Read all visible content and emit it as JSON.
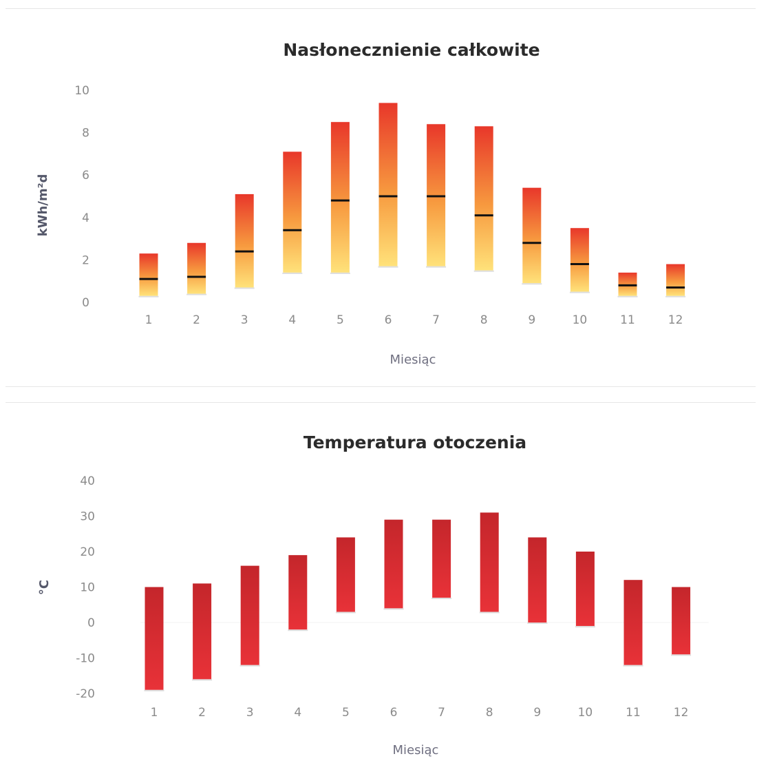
{
  "chart_data": [
    {
      "type": "bar",
      "subtype": "floating-range-with-mean",
      "title": "Nasłonecznienie całkowite",
      "xlabel": "Miesiąc",
      "ylabel": "kWh/m²d",
      "categories": [
        "1",
        "2",
        "3",
        "4",
        "5",
        "6",
        "7",
        "8",
        "9",
        "10",
        "11",
        "12"
      ],
      "ylim": [
        0,
        10
      ],
      "yticks": [
        0,
        2,
        4,
        6,
        8,
        10
      ],
      "series": [
        {
          "role": "max",
          "values": [
            2.3,
            2.8,
            5.1,
            7.1,
            8.5,
            9.4,
            8.4,
            8.3,
            5.4,
            3.5,
            1.4,
            1.8
          ]
        },
        {
          "role": "mean",
          "values": [
            1.1,
            1.2,
            2.4,
            3.4,
            4.8,
            5.0,
            5.0,
            4.1,
            2.8,
            1.8,
            0.8,
            0.7
          ]
        },
        {
          "role": "min",
          "values": [
            0.3,
            0.4,
            0.7,
            1.4,
            1.4,
            1.7,
            1.7,
            1.5,
            0.9,
            0.5,
            0.3,
            0.3
          ]
        }
      ],
      "colors": {
        "top": "#e8372a",
        "bottom": "#ffe27a",
        "mean_marker": "#111111",
        "min_marker": "#dddddd"
      }
    },
    {
      "type": "bar",
      "subtype": "floating-range",
      "title": "Temperatura otoczenia",
      "xlabel": "Miesiąc",
      "ylabel": "°C",
      "categories": [
        "1",
        "2",
        "3",
        "4",
        "5",
        "6",
        "7",
        "8",
        "9",
        "10",
        "11",
        "12"
      ],
      "ylim": [
        -20,
        40
      ],
      "yticks": [
        -20,
        -10,
        0,
        10,
        20,
        30,
        40
      ],
      "series": [
        {
          "role": "max",
          "values": [
            10,
            11,
            16,
            19,
            24,
            29,
            29,
            31,
            24,
            20,
            12,
            10
          ]
        },
        {
          "role": "min",
          "values": [
            -19,
            -16,
            -12,
            -2,
            3,
            4,
            7,
            3,
            0,
            -1,
            -12,
            -9
          ]
        }
      ],
      "colors": {
        "top": "#c8272a",
        "bottom": "#e5323a",
        "min_marker": "#dddddd"
      }
    }
  ]
}
